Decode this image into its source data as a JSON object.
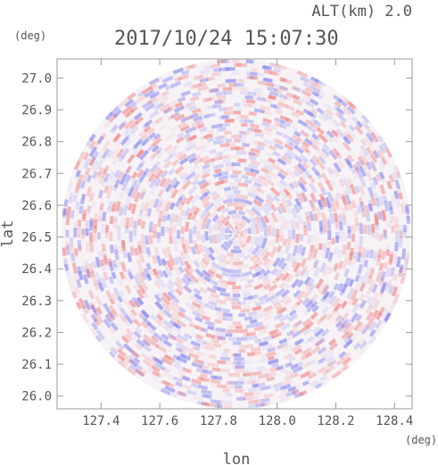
{
  "chart_data": {
    "type": "heatmap",
    "title": "2017/10/24 15:07:30",
    "altitude_label": "ALT(km) 2.0",
    "xlabel": "lon",
    "ylabel": "lat",
    "x_unit": "(deg)",
    "y_unit": "(deg)",
    "xlim": [
      127.25,
      128.46
    ],
    "ylim": [
      25.96,
      27.06
    ],
    "x_ticks": [
      "127.4",
      "127.6",
      "127.8",
      "128.0",
      "128.2",
      "128.4"
    ],
    "y_ticks": [
      "26.0",
      "26.1",
      "26.2",
      "26.3",
      "26.4",
      "26.5",
      "26.6",
      "26.7",
      "26.8",
      "26.9",
      "27.0"
    ],
    "center": {
      "lon": 127.86,
      "lat": 26.51
    },
    "radius_deg": 0.55,
    "field": "radial pattern of alternating positive/negative values (pink/blue), white near zero",
    "colors": {
      "positive": "#f08080",
      "negative": "#8080f0",
      "neutral": "#ffffff",
      "frame": "#999999",
      "text": "#555555"
    }
  }
}
